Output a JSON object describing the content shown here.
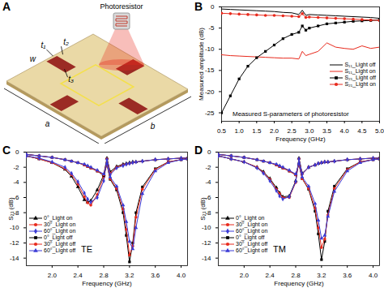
{
  "diagram": {
    "title": "A",
    "labels": {
      "photoresistor": "Photoresistor",
      "t1": "t₁",
      "t2": "t₂",
      "t3": "t₃",
      "w": "w",
      "a": "a",
      "b": "b"
    }
  },
  "chart_data": [
    {
      "type": "line",
      "title": "B",
      "x_label": "Frequency (GHz)",
      "y_label": "Measured amplitude (dB)",
      "annotations": [
        "Measured S-parameters of photoresistor"
      ],
      "x": [
        0.5,
        0.75,
        1.0,
        1.25,
        1.5,
        1.75,
        2.0,
        2.25,
        2.5,
        2.7,
        2.8,
        2.9,
        3.0,
        3.25,
        3.5,
        3.75,
        4.0,
        4.25,
        4.5,
        4.75,
        5.0
      ],
      "xlim": [
        0.5,
        5.0
      ],
      "xticks": [
        0.5,
        {
          "value": 1,
          "label": "1.0"
        },
        1.5,
        {
          "value": 2,
          "label": "2.0"
        },
        2.5,
        {
          "value": 3,
          "label": "3.0"
        },
        3.5,
        {
          "value": 4,
          "label": "4.0"
        },
        4.5,
        {
          "value": 5,
          "label": "5.0"
        }
      ],
      "ylim": [
        -27,
        0
      ],
      "yticks": [
        -25,
        -20,
        -15,
        -10,
        -5,
        0
      ],
      "grid": false,
      "legend": "right",
      "series": [
        {
          "name": "S₁₁_Light off",
          "color": "#000000",
          "line_style": "solid",
          "values": [
            -0.5,
            -0.6,
            -0.7,
            -0.8,
            -0.9,
            -1.0,
            -1.1,
            -1.3,
            -1.4,
            -1.8,
            -0.8,
            -2.0,
            -1.8,
            -1.9,
            -2.0,
            -2.1,
            -2.2,
            -2.3,
            -2.4,
            -2.5,
            -2.7
          ]
        },
        {
          "name": "S₁₁_Light on",
          "color": "#e8291c",
          "line_style": "solid",
          "values": [
            -11.3,
            -11.5,
            -11.6,
            -11.7,
            -11.8,
            -11.9,
            -12.0,
            -12.1,
            -12.1,
            -12.3,
            -10.5,
            -11.5,
            -11.2,
            -10.5,
            -8.5,
            -9.5,
            -9.8,
            -10.0,
            -9.2,
            -9.8,
            -9.5
          ]
        },
        {
          "name": "S₂₁_Light off",
          "color": "#000000",
          "line_style": "solid",
          "marker": "square",
          "values": [
            -25,
            -21,
            -17,
            -14,
            -12,
            -10.5,
            -9,
            -7.5,
            -6.5,
            -6,
            -4.5,
            -5.5,
            -5,
            -4.5,
            -4,
            -3.8,
            -3.6,
            -3.4,
            -3.3,
            -3.2,
            -3.1
          ]
        },
        {
          "name": "S₂₁_Light on",
          "color": "#e8291c",
          "line_style": "solid",
          "marker": "circle",
          "values": [
            -1.5,
            -1.6,
            -1.7,
            -1.8,
            -1.9,
            -2.0,
            -2.0,
            -2.1,
            -2.2,
            -2.3,
            -1.6,
            -2.5,
            -2.4,
            -2.5,
            -2.6,
            -2.7,
            -2.8,
            -2.9,
            -3.0,
            -3.1,
            -3.2
          ]
        }
      ]
    },
    {
      "type": "line",
      "title": "C",
      "x_label": "Frequency (GHz)",
      "y_label": "S₂₁ (dB)",
      "annotations": [
        "TE"
      ],
      "x": [
        1.6,
        1.8,
        2.0,
        2.2,
        2.3,
        2.4,
        2.5,
        2.55,
        2.6,
        2.7,
        2.8,
        2.85,
        2.9,
        3.0,
        3.1,
        3.15,
        3.2,
        3.25,
        3.3,
        3.4,
        3.6,
        3.8,
        4.0,
        4.1
      ],
      "xlim": [
        1.6,
        4.1
      ],
      "xticks": [
        {
          "value": 2,
          "label": "2.0"
        },
        2.4,
        2.8,
        3.2,
        3.6,
        {
          "value": 4,
          "label": "4.0"
        }
      ],
      "ylim": [
        -15,
        0
      ],
      "yticks": [
        -14,
        -12,
        -10,
        -8,
        -6,
        -4,
        -2,
        0
      ],
      "grid": false,
      "legend": "lower left",
      "series": [
        {
          "name": "0°_Light on",
          "color": "#000000",
          "line_style": "solid",
          "marker": "triangle",
          "values": [
            -0.5,
            -0.9,
            -1.4,
            -2.3,
            -3.2,
            -4.6,
            -6.3,
            -6.6,
            -6.4,
            -5.0,
            -3.0,
            -0.8,
            -2.6,
            -1.9,
            -1.6,
            -1.5,
            -1.4,
            -1.3,
            -1.3,
            -1.2,
            -1.0,
            -0.9,
            -0.8,
            -0.8
          ]
        },
        {
          "name": "30°_Light on",
          "color": "#e8291c",
          "line_style": "solid",
          "marker": "circle",
          "values": [
            -0.5,
            -0.9,
            -1.4,
            -2.2,
            -3.0,
            -4.2,
            -5.9,
            -6.7,
            -7.0,
            -5.6,
            -3.3,
            -0.9,
            -2.8,
            -2.0,
            -1.7,
            -1.6,
            -1.5,
            -1.4,
            -1.3,
            -1.2,
            -1.0,
            -0.9,
            -0.8,
            -0.8
          ]
        },
        {
          "name": "60°_Light on",
          "color": "#3b3bd6",
          "line_style": "solid",
          "marker": "diamond",
          "values": [
            -0.5,
            -0.8,
            -1.3,
            -2.0,
            -2.8,
            -3.9,
            -5.4,
            -6.2,
            -6.6,
            -6.0,
            -3.8,
            -1.0,
            -3.0,
            -2.1,
            -1.8,
            -1.6,
            -1.5,
            -1.4,
            -1.3,
            -1.2,
            -1.0,
            -0.9,
            -0.8,
            -0.8
          ]
        },
        {
          "name": "0°_Light off",
          "color": "#000000",
          "line_style": "solid",
          "marker": "square",
          "values": [
            -0.3,
            -0.5,
            -0.7,
            -1.0,
            -1.2,
            -1.4,
            -1.7,
            -1.9,
            -2.1,
            -2.5,
            -3.1,
            -1.6,
            -3.6,
            -5.0,
            -8.0,
            -11.0,
            -14.5,
            -12.0,
            -8.0,
            -4.6,
            -2.2,
            -1.3,
            -1.0,
            -0.9
          ]
        },
        {
          "name": "30°_Light off",
          "color": "#e8291c",
          "line_style": "solid",
          "marker": "circle",
          "values": [
            -0.3,
            -0.5,
            -0.7,
            -1.0,
            -1.2,
            -1.4,
            -1.7,
            -1.9,
            -2.1,
            -2.5,
            -3.0,
            -1.6,
            -3.5,
            -4.8,
            -7.5,
            -10.2,
            -13.6,
            -12.4,
            -8.6,
            -4.9,
            -2.3,
            -1.3,
            -1.0,
            -0.9
          ]
        },
        {
          "name": "60°_Light off",
          "color": "#3b3bd6",
          "line_style": "solid",
          "marker": "triangle",
          "values": [
            -0.3,
            -0.5,
            -0.7,
            -1.0,
            -1.2,
            -1.4,
            -1.6,
            -1.8,
            -2.0,
            -2.4,
            -2.9,
            -1.5,
            -3.3,
            -4.5,
            -7.0,
            -9.2,
            -11.8,
            -12.8,
            -10.0,
            -5.5,
            -2.5,
            -1.4,
            -1.0,
            -0.9
          ]
        }
      ]
    },
    {
      "type": "line",
      "title": "D",
      "x_label": "Frequency (GHz)",
      "y_label": "S₂₁ (dB)",
      "annotations": [
        "TM"
      ],
      "x": [
        1.6,
        1.8,
        2.0,
        2.2,
        2.3,
        2.4,
        2.5,
        2.55,
        2.6,
        2.7,
        2.8,
        2.85,
        2.9,
        3.0,
        3.1,
        3.15,
        3.2,
        3.25,
        3.3,
        3.4,
        3.6,
        3.8,
        4.0,
        4.1
      ],
      "xlim": [
        1.6,
        4.1
      ],
      "xticks": [
        {
          "value": 2,
          "label": "2.0"
        },
        2.4,
        2.8,
        3.2,
        3.6,
        {
          "value": 4,
          "label": "4.0"
        }
      ],
      "ylim": [
        -15,
        0
      ],
      "yticks": [
        -14,
        -12,
        -10,
        -8,
        -6,
        -4,
        -2,
        0
      ],
      "grid": false,
      "legend": "lower left",
      "series": [
        {
          "name": "0°_Light on",
          "color": "#000000",
          "line_style": "solid",
          "marker": "triangle",
          "values": [
            -0.5,
            -0.9,
            -1.3,
            -2.0,
            -2.6,
            -3.5,
            -4.7,
            -5.4,
            -5.9,
            -5.8,
            -3.8,
            -0.8,
            -2.8,
            -2.0,
            -1.7,
            -1.5,
            -1.4,
            -1.3,
            -1.3,
            -1.2,
            -1.0,
            -0.9,
            -0.8,
            -0.8
          ]
        },
        {
          "name": "30°_Light on",
          "color": "#e8291c",
          "line_style": "solid",
          "marker": "circle",
          "values": [
            -0.5,
            -0.9,
            -1.3,
            -2.0,
            -2.7,
            -3.6,
            -4.9,
            -5.5,
            -6.0,
            -6.0,
            -4.0,
            -0.9,
            -2.9,
            -2.0,
            -1.7,
            -1.5,
            -1.4,
            -1.3,
            -1.3,
            -1.2,
            -1.0,
            -0.9,
            -0.8,
            -0.8
          ]
        },
        {
          "name": "60°_Light on",
          "color": "#3b3bd6",
          "line_style": "solid",
          "marker": "diamond",
          "values": [
            -0.5,
            -0.9,
            -1.3,
            -2.1,
            -2.8,
            -3.8,
            -5.1,
            -5.8,
            -6.2,
            -5.9,
            -3.9,
            -0.9,
            -2.9,
            -2.0,
            -1.7,
            -1.5,
            -1.4,
            -1.3,
            -1.3,
            -1.2,
            -1.0,
            -0.9,
            -0.8,
            -0.8
          ]
        },
        {
          "name": "0°_Light off",
          "color": "#000000",
          "line_style": "solid",
          "marker": "square",
          "values": [
            -0.3,
            -0.5,
            -0.7,
            -1.0,
            -1.2,
            -1.4,
            -1.7,
            -1.9,
            -2.1,
            -2.5,
            -3.0,
            -1.6,
            -3.5,
            -4.9,
            -7.8,
            -10.8,
            -14.2,
            -11.8,
            -7.8,
            -4.5,
            -2.2,
            -1.3,
            -1.0,
            -0.9
          ]
        },
        {
          "name": "30°_Light off",
          "color": "#e8291c",
          "line_style": "solid",
          "marker": "circle",
          "values": [
            -0.3,
            -0.5,
            -0.7,
            -1.0,
            -1.2,
            -1.4,
            -1.7,
            -1.9,
            -2.1,
            -2.5,
            -3.0,
            -1.6,
            -3.5,
            -4.8,
            -7.4,
            -10.0,
            -12.6,
            -11.5,
            -8.3,
            -4.8,
            -2.3,
            -1.3,
            -1.0,
            -0.9
          ]
        },
        {
          "name": "60°_Light off",
          "color": "#3b3bd6",
          "line_style": "solid",
          "marker": "triangle",
          "values": [
            -0.3,
            -0.5,
            -0.7,
            -1.0,
            -1.2,
            -1.4,
            -1.6,
            -1.8,
            -2.0,
            -2.4,
            -2.9,
            -1.5,
            -3.3,
            -4.5,
            -6.8,
            -9.0,
            -11.4,
            -11.0,
            -8.5,
            -5.2,
            -2.5,
            -1.4,
            -1.0,
            -0.9
          ]
        }
      ]
    }
  ]
}
